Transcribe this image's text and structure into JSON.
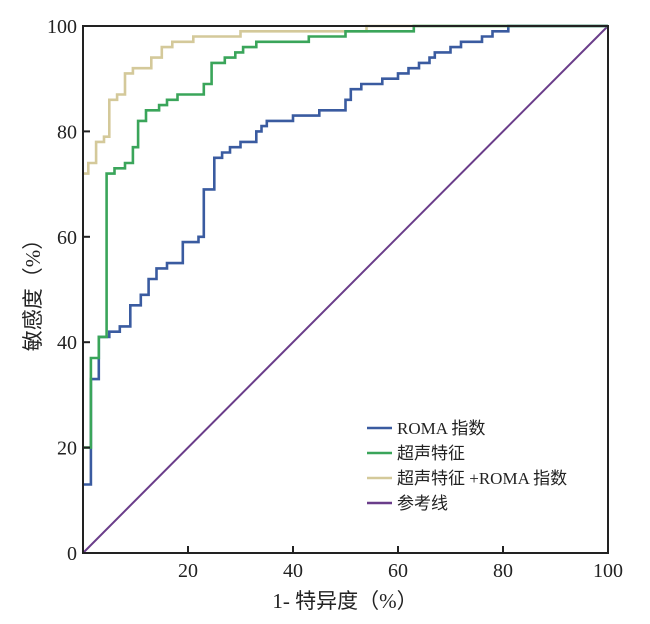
{
  "chart_data": {
    "type": "line",
    "title": "",
    "xlabel": "1- 特异度（%）",
    "ylabel": "敏感度（%）",
    "xlim": [
      0,
      100
    ],
    "ylim": [
      0,
      100
    ],
    "x_ticks": [
      0,
      20,
      40,
      60,
      80,
      100
    ],
    "y_ticks": [
      0,
      20,
      40,
      60,
      80,
      100
    ],
    "grid": false,
    "legend_position": "bottom-right",
    "series": [
      {
        "name": "ROMA 指数",
        "color": "#3a5ba0",
        "step": true,
        "points": [
          [
            0,
            13
          ],
          [
            1.5,
            13
          ],
          [
            1.5,
            33
          ],
          [
            3,
            33
          ],
          [
            3,
            41
          ],
          [
            5,
            41
          ],
          [
            5,
            42
          ],
          [
            7,
            42
          ],
          [
            7,
            43
          ],
          [
            9,
            43
          ],
          [
            9,
            47
          ],
          [
            11,
            47
          ],
          [
            11,
            49
          ],
          [
            12.5,
            49
          ],
          [
            12.5,
            52
          ],
          [
            14,
            52
          ],
          [
            14,
            54
          ],
          [
            16,
            54
          ],
          [
            16,
            55
          ],
          [
            19,
            55
          ],
          [
            19,
            59
          ],
          [
            22,
            59
          ],
          [
            22,
            60
          ],
          [
            23,
            60
          ],
          [
            23,
            69
          ],
          [
            25,
            69
          ],
          [
            25,
            75
          ],
          [
            26.5,
            75
          ],
          [
            26.5,
            76
          ],
          [
            28,
            76
          ],
          [
            28,
            77
          ],
          [
            30,
            77
          ],
          [
            30,
            78
          ],
          [
            33,
            78
          ],
          [
            33,
            80
          ],
          [
            34,
            80
          ],
          [
            34,
            81
          ],
          [
            35,
            81
          ],
          [
            35,
            82
          ],
          [
            40,
            82
          ],
          [
            40,
            83
          ],
          [
            45,
            83
          ],
          [
            45,
            84
          ],
          [
            50,
            84
          ],
          [
            50,
            86
          ],
          [
            51,
            86
          ],
          [
            51,
            88
          ],
          [
            53,
            88
          ],
          [
            53,
            89
          ],
          [
            57,
            89
          ],
          [
            57,
            90
          ],
          [
            60,
            90
          ],
          [
            60,
            91
          ],
          [
            62,
            91
          ],
          [
            62,
            92
          ],
          [
            64,
            92
          ],
          [
            64,
            93
          ],
          [
            66,
            93
          ],
          [
            66,
            94
          ],
          [
            67,
            94
          ],
          [
            67,
            95
          ],
          [
            70,
            95
          ],
          [
            70,
            96
          ],
          [
            72,
            96
          ],
          [
            72,
            97
          ],
          [
            76,
            97
          ],
          [
            76,
            98
          ],
          [
            78,
            98
          ],
          [
            78,
            99
          ],
          [
            81,
            99
          ],
          [
            81,
            100
          ],
          [
            100,
            100
          ]
        ]
      },
      {
        "name": "超声特征",
        "color": "#3aa55a",
        "step": true,
        "points": [
          [
            0,
            20
          ],
          [
            1.5,
            20
          ],
          [
            1.5,
            37
          ],
          [
            3,
            37
          ],
          [
            3,
            41
          ],
          [
            4.5,
            41
          ],
          [
            4.5,
            72
          ],
          [
            6,
            72
          ],
          [
            6,
            73
          ],
          [
            8,
            73
          ],
          [
            8,
            74
          ],
          [
            9.5,
            74
          ],
          [
            9.5,
            77
          ],
          [
            10.5,
            77
          ],
          [
            10.5,
            82
          ],
          [
            12,
            82
          ],
          [
            12,
            84
          ],
          [
            14.5,
            84
          ],
          [
            14.5,
            85
          ],
          [
            16,
            85
          ],
          [
            16,
            86
          ],
          [
            18,
            86
          ],
          [
            18,
            87
          ],
          [
            23,
            87
          ],
          [
            23,
            89
          ],
          [
            24.5,
            89
          ],
          [
            24.5,
            93
          ],
          [
            27,
            93
          ],
          [
            27,
            94
          ],
          [
            29,
            94
          ],
          [
            29,
            95
          ],
          [
            30.5,
            95
          ],
          [
            30.5,
            96
          ],
          [
            33,
            96
          ],
          [
            33,
            97
          ],
          [
            43,
            97
          ],
          [
            43,
            98
          ],
          [
            50,
            98
          ],
          [
            50,
            99
          ],
          [
            63,
            99
          ],
          [
            63,
            100
          ],
          [
            100,
            100
          ]
        ]
      },
      {
        "name": "超声特征 +ROMA 指数",
        "color": "#d4c99a",
        "step": true,
        "points": [
          [
            0,
            72
          ],
          [
            1,
            72
          ],
          [
            1,
            74
          ],
          [
            2.5,
            74
          ],
          [
            2.5,
            78
          ],
          [
            4,
            78
          ],
          [
            4,
            79
          ],
          [
            5,
            79
          ],
          [
            5,
            86
          ],
          [
            6.5,
            86
          ],
          [
            6.5,
            87
          ],
          [
            8,
            87
          ],
          [
            8,
            91
          ],
          [
            9.5,
            91
          ],
          [
            9.5,
            92
          ],
          [
            13,
            92
          ],
          [
            13,
            94
          ],
          [
            15,
            94
          ],
          [
            15,
            96
          ],
          [
            17,
            96
          ],
          [
            17,
            97
          ],
          [
            21,
            97
          ],
          [
            21,
            98
          ],
          [
            30,
            98
          ],
          [
            30,
            99
          ],
          [
            54,
            99
          ],
          [
            54,
            100
          ],
          [
            100,
            100
          ]
        ]
      },
      {
        "name": "参考线",
        "color": "#6a3d8a",
        "step": false,
        "points": [
          [
            0,
            0
          ],
          [
            100,
            100
          ]
        ]
      }
    ]
  }
}
